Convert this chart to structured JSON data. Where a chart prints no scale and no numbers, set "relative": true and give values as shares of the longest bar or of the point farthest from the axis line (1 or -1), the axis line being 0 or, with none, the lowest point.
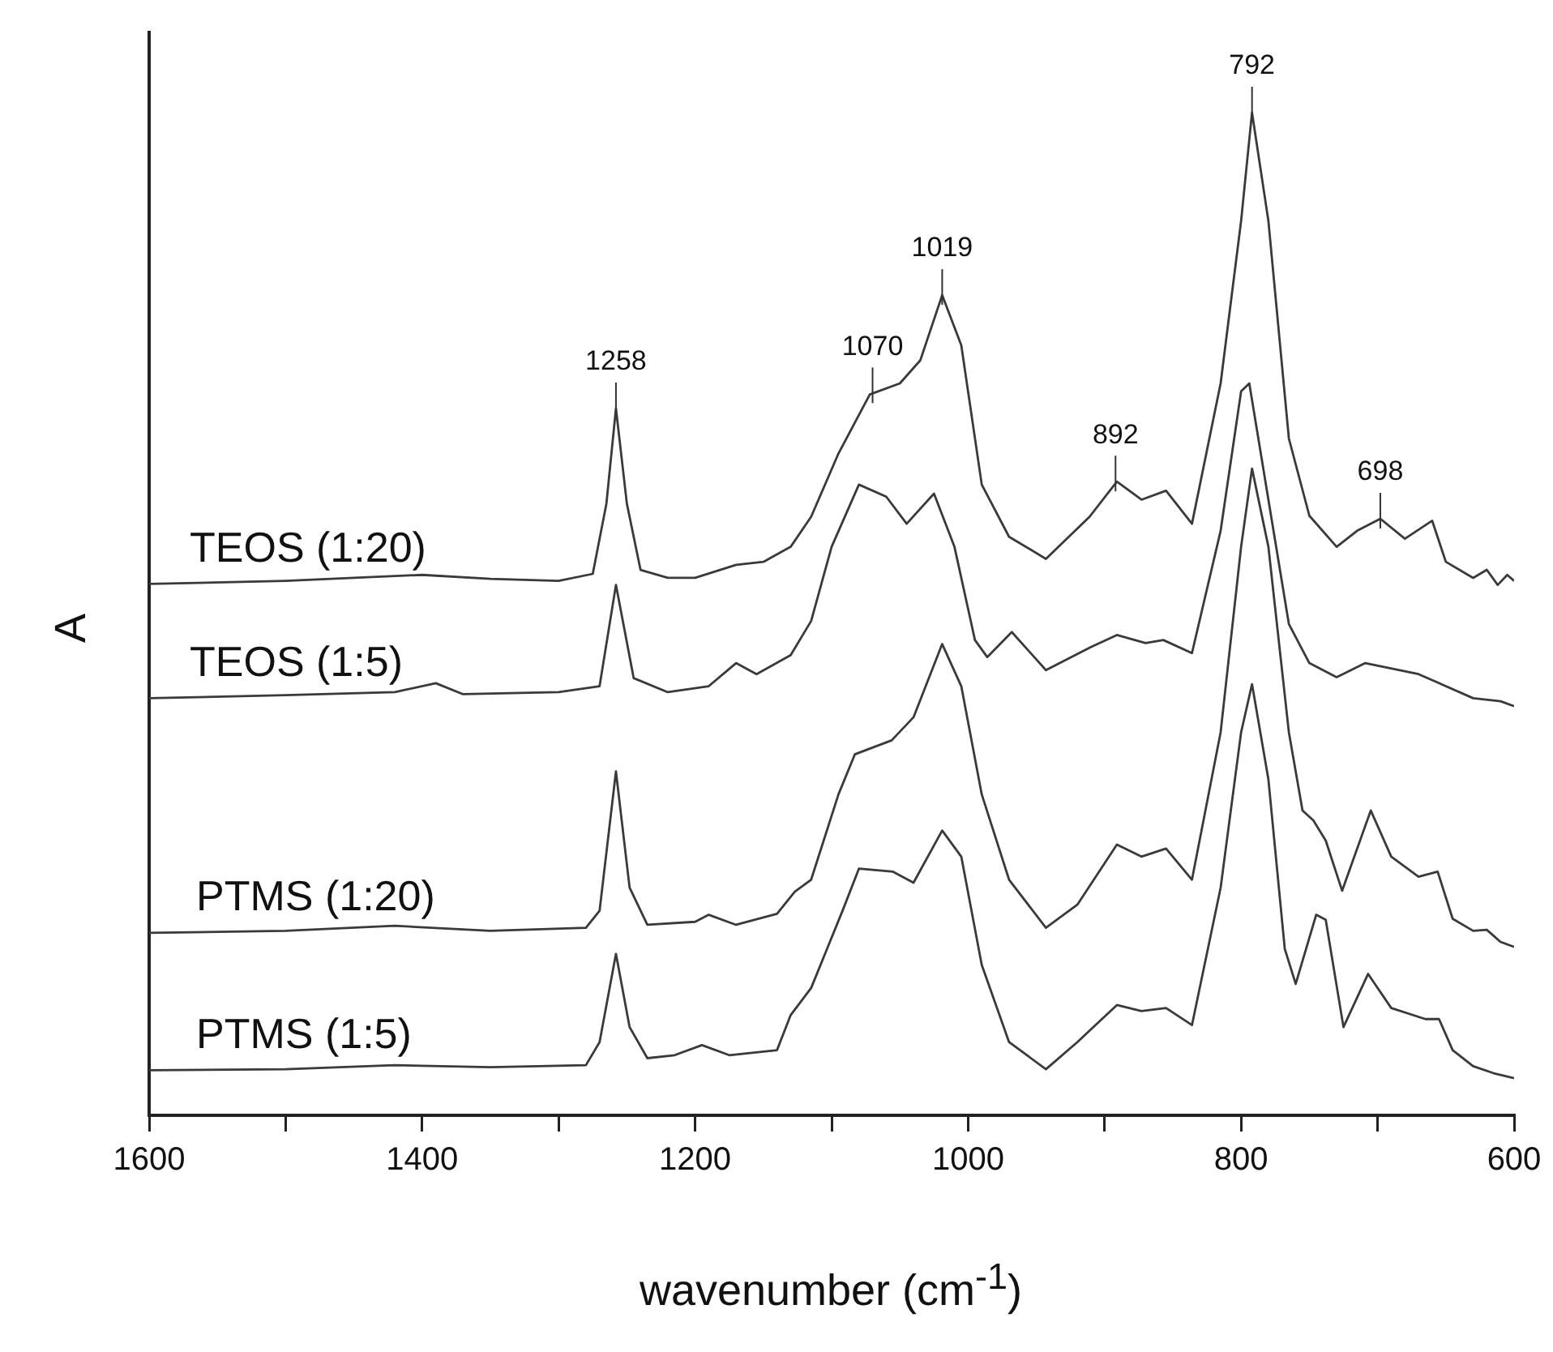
{
  "chart_data": {
    "type": "line",
    "relative": true,
    "xlabel": "wavenumber (cm$^{-1}$)",
    "ylabel": "A",
    "legend": false,
    "grid": false,
    "marker": "none",
    "line_style": "solid",
    "tick_labels": "x",
    "xlim": [
      1600,
      600
    ],
    "xticks": [
      1600,
      {
        "value": 1500,
        "label": null
      },
      1400,
      {
        "value": 1300,
        "label": null
      },
      1200,
      {
        "value": 1100,
        "label": null
      },
      1000,
      {
        "value": 900,
        "label": null
      },
      800,
      {
        "value": 700,
        "label": null
      },
      600
    ],
    "series": [
      {
        "name": "TEOS (1:20)",
        "color": "#3a3a3a",
        "x": [
          1600,
          1500,
          1450,
          1400,
          1350,
          1300,
          1275,
          1265,
          1258,
          1250,
          1240,
          1220,
          1200,
          1170,
          1150,
          1130,
          1115,
          1095,
          1072,
          1050,
          1035,
          1019,
          1005,
          990,
          970,
          943,
          911,
          891,
          873,
          855,
          836,
          815,
          800,
          792,
          780,
          765,
          750,
          730,
          715,
          698,
          680,
          660,
          650,
          630,
          620,
          612,
          605,
          600
        ],
        "values": [
          0.53,
          0.533,
          0.536,
          0.539,
          0.535,
          0.533,
          0.54,
          0.61,
          0.705,
          0.61,
          0.544,
          0.536,
          0.536,
          0.549,
          0.552,
          0.567,
          0.597,
          0.66,
          0.719,
          0.73,
          0.753,
          0.818,
          0.768,
          0.629,
          0.577,
          0.555,
          0.597,
          0.632,
          0.614,
          0.623,
          0.59,
          0.73,
          0.892,
          1,
          0.892,
          0.675,
          0.598,
          0.567,
          0.583,
          0.595,
          0.575,
          0.593,
          0.552,
          0.536,
          0.544,
          0.529,
          0.539,
          0.533
        ]
      },
      {
        "name": "TEOS (1:5)",
        "color": "#3a3a3a",
        "x": [
          1600,
          1500,
          1420,
          1390,
          1370,
          1300,
          1270,
          1258,
          1245,
          1220,
          1190,
          1170,
          1155,
          1130,
          1115,
          1100,
          1080,
          1060,
          1045,
          1025,
          1010,
          995,
          986,
          968,
          943,
          910,
          891,
          870,
          857,
          836,
          815,
          800,
          794,
          780,
          765,
          750,
          730,
          709,
          670,
          655,
          630,
          610,
          600
        ],
        "values": [
          0.416,
          0.419,
          0.422,
          0.431,
          0.42,
          0.422,
          0.428,
          0.529,
          0.436,
          0.422,
          0.428,
          0.451,
          0.44,
          0.459,
          0.493,
          0.567,
          0.629,
          0.617,
          0.59,
          0.62,
          0.567,
          0.474,
          0.457,
          0.482,
          0.444,
          0.467,
          0.479,
          0.471,
          0.474,
          0.461,
          0.583,
          0.722,
          0.73,
          0.614,
          0.49,
          0.451,
          0.437,
          0.451,
          0.44,
          0.431,
          0.416,
          0.413,
          0.408
        ]
      },
      {
        "name": "PTMS (1:20)",
        "color": "#3a3a3a",
        "x": [
          1600,
          1500,
          1420,
          1350,
          1280,
          1270,
          1258,
          1248,
          1235,
          1200,
          1190,
          1170,
          1140,
          1127,
          1115,
          1095,
          1083,
          1056,
          1040,
          1019,
          1005,
          990,
          970,
          943,
          920,
          891,
          873,
          855,
          836,
          815,
          800,
          792,
          780,
          765,
          755,
          747,
          738,
          726,
          705,
          690,
          670,
          656,
          645,
          630,
          620,
          610,
          600
        ],
        "values": [
          0.182,
          0.184,
          0.189,
          0.184,
          0.187,
          0.204,
          0.343,
          0.227,
          0.19,
          0.193,
          0.2,
          0.19,
          0.201,
          0.223,
          0.235,
          0.32,
          0.36,
          0.374,
          0.397,
          0.47,
          0.428,
          0.32,
          0.235,
          0.187,
          0.21,
          0.27,
          0.258,
          0.266,
          0.235,
          0.382,
          0.567,
          0.645,
          0.567,
          0.382,
          0.304,
          0.294,
          0.274,
          0.224,
          0.304,
          0.258,
          0.238,
          0.243,
          0.196,
          0.184,
          0.185,
          0.173,
          0.168
        ]
      },
      {
        "name": "PTMS (1:5)",
        "color": "#3a3a3a",
        "x": [
          1600,
          1500,
          1420,
          1350,
          1280,
          1270,
          1258,
          1248,
          1235,
          1215,
          1195,
          1175,
          1140,
          1130,
          1115,
          1092,
          1080,
          1055,
          1040,
          1019,
          1005,
          990,
          970,
          943,
          920,
          891,
          873,
          855,
          836,
          815,
          800,
          792,
          780,
          768,
          760,
          745,
          738,
          725,
          707,
          690,
          665,
          655,
          645,
          630,
          615,
          600
        ],
        "values": [
          0.045,
          0.046,
          0.05,
          0.048,
          0.05,
          0.073,
          0.161,
          0.088,
          0.057,
          0.06,
          0.07,
          0.06,
          0.065,
          0.1,
          0.127,
          0.204,
          0.246,
          0.243,
          0.232,
          0.284,
          0.258,
          0.15,
          0.073,
          0.046,
          0.073,
          0.11,
          0.104,
          0.107,
          0.09,
          0.227,
          0.382,
          0.43,
          0.335,
          0.166,
          0.131,
          0.2,
          0.195,
          0.088,
          0.141,
          0.107,
          0.096,
          0.096,
          0.065,
          0.049,
          0.042,
          0.037
        ]
      }
    ],
    "annotations": [
      {
        "text": "1258",
        "x": 1258,
        "y": 0.705
      },
      {
        "text": "1070",
        "x": 1070,
        "y": 0.72
      },
      {
        "text": "1019",
        "x": 1019,
        "y": 0.818
      },
      {
        "text": "892",
        "x": 892,
        "y": 0.632
      },
      {
        "text": "792",
        "x": 792,
        "y": 1
      },
      {
        "text": "698",
        "x": 698,
        "y": 0.595
      }
    ]
  }
}
